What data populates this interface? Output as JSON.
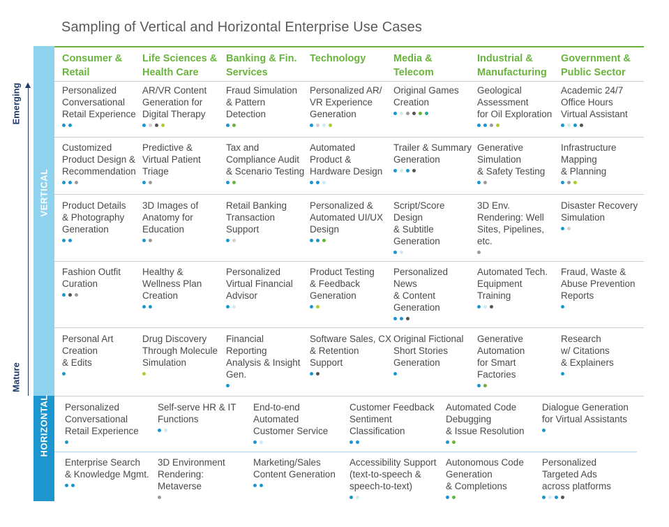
{
  "title": "Sampling of Vertical and Horizontal Enterprise Use Cases",
  "axis": {
    "top_label": "Emerging",
    "bottom_label": "Mature"
  },
  "bands": {
    "vertical": "VERTICAL",
    "horizontal": "HORIZONTAL"
  },
  "colors": {
    "green": "#6ab43e",
    "light_green": "#a8cf2f",
    "blue": "#1d95cf",
    "teal": "#28a8a0",
    "light_blue": "#8fd3ef",
    "pale_blue": "#cfe9f5",
    "dark_gray": "#555555",
    "gray": "#9a9a9a",
    "light_gray": "#cfcfcf"
  },
  "columns": [
    "Consumer &\nRetail",
    "Life Sciences &\nHealth Care",
    "Banking & Fin.\nServices",
    "Technology",
    "Media &\nTelecom",
    "Industrial &\nManufacturing",
    "Government &\nPublic Sector"
  ],
  "vertical_rows": [
    [
      {
        "text": "Personalized\nConversational\nRetail Experience",
        "dots": [
          "blue",
          "blue"
        ]
      },
      {
        "text": "AR/VR Content\nGeneration for\nDigital Therapy",
        "dots": [
          "blue",
          "light_gray",
          "dark_gray",
          "light_green"
        ]
      },
      {
        "text": "Fraud Simulation\n& Pattern\nDetection",
        "dots": [
          "blue",
          "green"
        ]
      },
      {
        "text": "Personalized AR/\nVR Experience\nGeneration",
        "dots": [
          "blue",
          "light_gray",
          "pale_blue",
          "light_green"
        ]
      },
      {
        "text": "Original Games\nCreation",
        "dots": [
          "blue",
          "pale_blue",
          "gray",
          "dark_gray",
          "green",
          "teal"
        ]
      },
      {
        "text": "Geological\nAssessment\nfor Oil Exploration",
        "dots": [
          "blue",
          "blue",
          "gray",
          "light_green"
        ]
      },
      {
        "text": "Academic 24/7\nOffice Hours\nVirtual Assistant",
        "dots": [
          "blue",
          "pale_blue",
          "blue",
          "dark_gray"
        ]
      }
    ],
    [
      {
        "text": "Customized\nProduct Design &\nRecommendation",
        "dots": [
          "blue",
          "blue",
          "gray"
        ]
      },
      {
        "text": "Predictive &\nVirtual Patient\nTriage",
        "dots": [
          "blue",
          "gray"
        ]
      },
      {
        "text": "Tax and\nCompliance Audit\n& Scenario Testing",
        "dots": [
          "blue",
          "green"
        ]
      },
      {
        "text": "Automated\nProduct &\nHardware Design",
        "dots": [
          "blue",
          "blue",
          "pale_blue"
        ]
      },
      {
        "text": "Trailer & Summary\nGeneration",
        "dots": [
          "blue",
          "pale_blue",
          "blue",
          "dark_gray"
        ]
      },
      {
        "text": "Generative\nSimulation\n& Safety Testing",
        "dots": [
          "blue",
          "gray"
        ]
      },
      {
        "text": "Infrastructure\nMapping\n& Planning",
        "dots": [
          "blue",
          "gray",
          "light_green"
        ]
      }
    ],
    [
      {
        "text": "Product Details\n& Photography\nGeneration",
        "dots": [
          "blue",
          "blue"
        ]
      },
      {
        "text": "3D Images of\nAnatomy for\nEducation",
        "dots": [
          "blue",
          "gray"
        ]
      },
      {
        "text": "Retail Banking\nTransaction\nSupport",
        "dots": [
          "blue",
          "light_gray"
        ]
      },
      {
        "text": "Personalized &\nAutomated UI/UX\nDesign",
        "dots": [
          "blue",
          "blue",
          "green"
        ]
      },
      {
        "text": "Script/Score\nDesign\n& Subtitle\nGeneration",
        "dots": [
          "blue",
          "pale_blue"
        ]
      },
      {
        "text": "3D Env.\nRendering: Well\nSites, Pipelines,\netc.",
        "dots": [
          "gray"
        ]
      },
      {
        "text": "Disaster Recovery\nSimulation",
        "dots": [
          "blue",
          "light_gray"
        ]
      }
    ],
    [
      {
        "text": "Fashion Outfit\nCuration",
        "dots": [
          "blue",
          "dark_gray",
          "gray"
        ]
      },
      {
        "text": "Healthy &\nWellness Plan\nCreation",
        "dots": [
          "blue",
          "blue"
        ]
      },
      {
        "text": "Personalized\nVirtual Financial\nAdvisor",
        "dots": [
          "blue",
          "pale_blue"
        ]
      },
      {
        "text": "Product Testing\n& Feedback\nGeneration",
        "dots": [
          "blue",
          "light_green"
        ]
      },
      {
        "text": "Personalized\nNews\n& Content\nGeneration",
        "dots": [
          "blue",
          "blue",
          "dark_gray"
        ]
      },
      {
        "text": "Automated Tech.\nEquipment\nTraining",
        "dots": [
          "blue",
          "pale_blue",
          "dark_gray"
        ]
      },
      {
        "text": "Fraud, Waste &\nAbuse Prevention\nReports",
        "dots": [
          "blue"
        ]
      }
    ],
    [
      {
        "text": "Personal Art\nCreation\n& Edits",
        "dots": [
          "blue"
        ]
      },
      {
        "text": "Drug Discovery\nThrough Molecule\nSimulation",
        "dots": [
          "light_green"
        ]
      },
      {
        "text": "Financial\nReporting\nAnalysis & Insight\nGen.",
        "dots": [
          "blue"
        ]
      },
      {
        "text": "Software Sales, CX\n& Retention\nSupport",
        "dots": [
          "blue",
          "dark_gray"
        ]
      },
      {
        "text": "Original Fictional\nShort Stories\nGeneration",
        "dots": [
          "blue"
        ]
      },
      {
        "text": "Generative\nAutomation\nfor Smart\nFactories",
        "dots": [
          "blue",
          "green"
        ]
      },
      {
        "text": "Research\nw/ Citations\n& Explainers",
        "dots": [
          "blue"
        ]
      }
    ]
  ],
  "horizontal_rows": [
    [
      {
        "text": "Personalized\nConversational\nRetail Experience",
        "dots": [
          "blue"
        ]
      },
      {
        "text": "Self-serve HR & IT\nFunctions",
        "dots": [
          "blue",
          "pale_blue"
        ]
      },
      {
        "text": "End-to-end\nAutomated\nCustomer Service",
        "dots": [
          "blue",
          "pale_blue"
        ]
      },
      {
        "text": "Customer Feedback\nSentiment\nClassification",
        "dots": [
          "blue",
          "blue"
        ]
      },
      {
        "text": "Automated Code\nDebugging\n& Issue Resolution",
        "dots": [
          "blue",
          "green"
        ]
      },
      {
        "text": "Dialogue Generation\nfor Virtual Assistants",
        "dots": [
          "blue"
        ]
      }
    ],
    [
      {
        "text": "Enterprise Search\n& Knowledge Mgmt.",
        "dots": [
          "blue",
          "blue"
        ]
      },
      {
        "text": "3D Environment\nRendering:\nMetaverse",
        "dots": [
          "gray"
        ]
      },
      {
        "text": "Marketing/Sales\nContent Generation",
        "dots": [
          "blue",
          "blue"
        ]
      },
      {
        "text": "Accessibility Support\n(text-to-speech &\nspeech-to-text)",
        "dots": [
          "blue",
          "pale_blue"
        ]
      },
      {
        "text": "Autonomous Code\nGeneration\n& Completions",
        "dots": [
          "blue",
          "green"
        ]
      },
      {
        "text": "Personalized\nTargeted Ads\nacross platforms",
        "dots": [
          "blue",
          "pale_blue",
          "blue",
          "dark_gray"
        ]
      }
    ]
  ]
}
